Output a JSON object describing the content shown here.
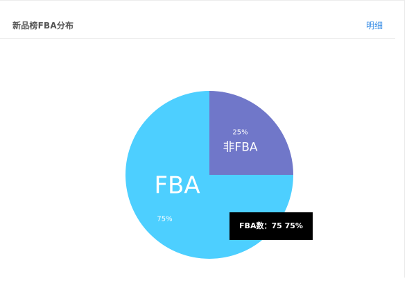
{
  "header": {
    "title": "新品榜FBA分布",
    "detail_label": "明细"
  },
  "tooltip": {
    "text": "FBA数：75  75%"
  },
  "colors": {
    "fba": "#4dcfff",
    "non_fba": "#7077c9",
    "link": "#3a8ee6"
  },
  "chart_data": {
    "type": "pie",
    "title": "",
    "slices": [
      {
        "label": "非FBA",
        "value": 25,
        "percent": "25%",
        "color": "#7077c9"
      },
      {
        "label": "FBA",
        "value": 75,
        "percent": "75%",
        "color": "#4dcfff"
      }
    ]
  }
}
